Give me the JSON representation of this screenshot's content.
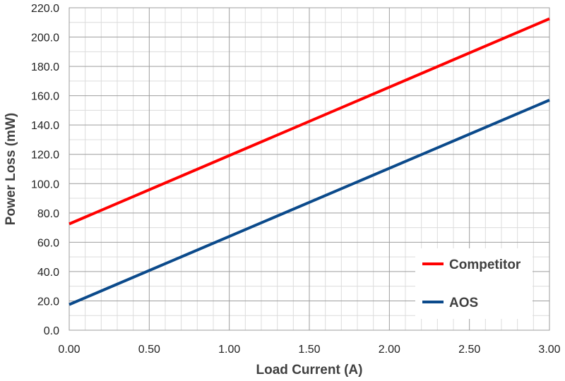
{
  "chart_data": {
    "type": "line",
    "xlabel": "Load Current (A)",
    "ylabel": "Power Loss (mW)",
    "xlim": [
      0,
      3
    ],
    "ylim": [
      0,
      220
    ],
    "x_ticks": [
      "0.00",
      "0.50",
      "1.00",
      "1.50",
      "2.00",
      "2.50",
      "3.00"
    ],
    "y_ticks": [
      "0.0",
      "20.0",
      "40.0",
      "60.0",
      "80.0",
      "100.0",
      "120.0",
      "140.0",
      "160.0",
      "180.0",
      "200.0",
      "220.0"
    ],
    "grid": true,
    "legend_position": "bottom-right",
    "series": [
      {
        "name": "Competitor",
        "color": "#ff0000",
        "x": [
          0.0,
          3.0
        ],
        "y": [
          72.5,
          212.5
        ]
      },
      {
        "name": "AOS",
        "color": "#0b4a8b",
        "x": [
          0.0,
          3.0
        ],
        "y": [
          17.5,
          157.0
        ]
      }
    ]
  }
}
